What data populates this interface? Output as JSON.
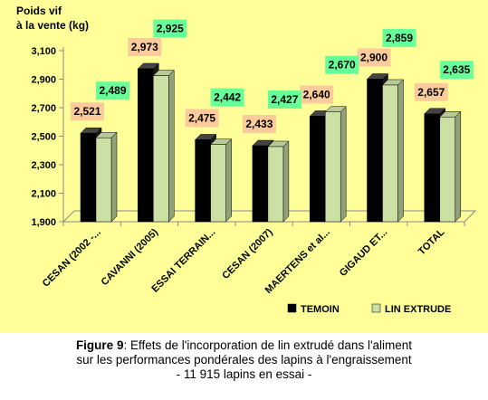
{
  "chart_data": {
    "type": "bar",
    "ylabel": [
      "Poids vif",
      "à la vente (kg)"
    ],
    "categories": [
      "CESAN (2002 -...",
      "CAVANNI (2005)",
      "ESSAI TERRAIN...",
      "CESAN (2007)",
      "MAERTENS et al...",
      "GIGAUD ET...",
      "TOTAL"
    ],
    "series": [
      {
        "name": "TEMOIN",
        "values": [
          2.521,
          2.973,
          2.475,
          2.433,
          2.64,
          2.9,
          2.657
        ],
        "labels": [
          "2,521",
          "2,973",
          "2,475",
          "2,433",
          "2,640",
          "2,900",
          "2,657"
        ],
        "color": "#000000"
      },
      {
        "name": "LIN EXTRUDE",
        "values": [
          2.489,
          2.925,
          2.442,
          2.427,
          2.67,
          2.859,
          2.635
        ],
        "labels": [
          "2,489",
          "2,925",
          "2,442",
          "2,427",
          "2,670",
          "2,859",
          "2,635"
        ],
        "color": "#cce0a6"
      }
    ],
    "ylim": [
      1.9,
      3.1
    ],
    "yticks": [
      1.9,
      2.1,
      2.3,
      2.5,
      2.7,
      2.9,
      3.1
    ],
    "ytick_labels": [
      "1,900",
      "2,100",
      "2,300",
      "2,500",
      "2,700",
      "2,900",
      "3,100"
    ],
    "grid": false,
    "legend_position": "bottom",
    "colors": {
      "background": "#ffff99",
      "temoin_label_bg": "#fccb9c",
      "lin_label_bg": "#66ff99",
      "lin_bar": "#cce0a6"
    }
  },
  "caption": {
    "figure_label": "Figure 9",
    "line1": ": Effets de l'incorporation de lin extrudé dans l'aliment",
    "line2": "sur les performances pondérales des lapins à l'engraissement",
    "line3": "- 11 915 lapins en essai -"
  }
}
